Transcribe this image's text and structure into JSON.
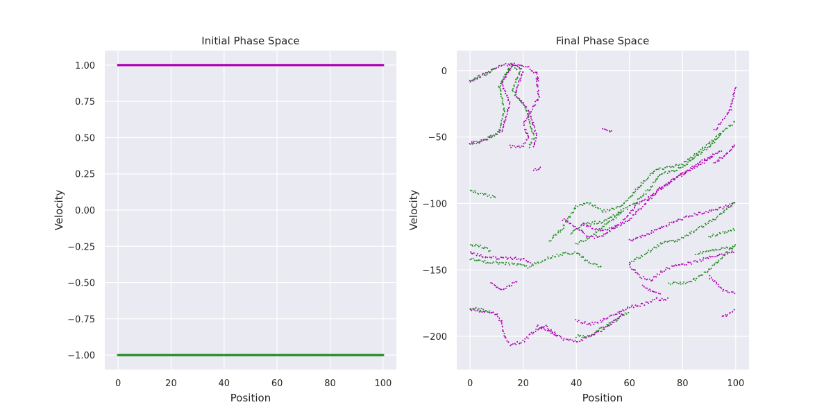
{
  "figure": {
    "background": "#ffffff",
    "plot_background": "#eaeaf2",
    "grid_color": "#ffffff",
    "series_colors": {
      "upper": "#b000b5",
      "lower": "#228b22"
    }
  },
  "chart_data": [
    {
      "type": "scatter",
      "title": "Initial Phase Space",
      "xlabel": "Position",
      "ylabel": "Velocity",
      "xlim": [
        -5,
        105
      ],
      "ylim": [
        -1.1,
        1.1
      ],
      "xticks": [
        0,
        20,
        40,
        60,
        80,
        100
      ],
      "xtick_labels": [
        "0",
        "20",
        "40",
        "60",
        "80",
        "100"
      ],
      "yticks": [
        1.0,
        0.75,
        0.5,
        0.25,
        0.0,
        -0.25,
        -0.5,
        -0.75,
        -1.0
      ],
      "ytick_labels": [
        "1.00",
        "0.75",
        "0.50",
        "0.25",
        "0.00",
        "−0.25",
        "−0.50",
        "−0.75",
        "−1.00"
      ],
      "grid": true,
      "series": [
        {
          "color": "#b000b5",
          "x_range": [
            0,
            100
          ],
          "y": 1.0,
          "count": 400
        },
        {
          "color": "#228b22",
          "x_range": [
            0,
            100
          ],
          "y": -1.0,
          "count": 400
        }
      ]
    },
    {
      "type": "scatter",
      "title": "Final Phase Space",
      "xlabel": "Position",
      "ylabel": "Velocity",
      "xlim": [
        -5,
        105
      ],
      "ylim": [
        -225,
        15
      ],
      "xticks": [
        0,
        20,
        40,
        60,
        80,
        100
      ],
      "xtick_labels": [
        "0",
        "20",
        "40",
        "60",
        "80",
        "100"
      ],
      "yticks": [
        0,
        -50,
        -100,
        -150,
        -200
      ],
      "ytick_labels": [
        "0",
        "−50",
        "−100",
        "−150",
        "−200"
      ],
      "grid": true,
      "series": [
        {
          "color": "#b000b5",
          "curves": [
            [
              [
                0,
                -55
              ],
              [
                6,
                -52
              ],
              [
                12,
                -45
              ],
              [
                15,
                -25
              ],
              [
                12,
                -10
              ],
              [
                16,
                5
              ],
              [
                20,
                0
              ],
              [
                17,
                -18
              ],
              [
                22,
                -30
              ],
              [
                25,
                -48
              ],
              [
                24,
                -58
              ]
            ],
            [
              [
                15,
                -57
              ],
              [
                20,
                -57
              ],
              [
                22,
                -50
              ],
              [
                20,
                -40
              ],
              [
                23,
                -30
              ],
              [
                26,
                -20
              ],
              [
                25,
                -5
              ]
            ],
            [
              [
                0,
                -8
              ],
              [
                4,
                -4
              ],
              [
                8,
                0
              ],
              [
                12,
                4
              ],
              [
                18,
                5
              ],
              [
                22,
                2
              ],
              [
                25,
                -2
              ],
              [
                26,
                -8
              ]
            ],
            [
              [
                24,
                -75
              ],
              [
                27,
                -72
              ]
            ],
            [
              [
                35,
                -112
              ],
              [
                40,
                -118
              ],
              [
                45,
                -126
              ],
              [
                50,
                -124
              ],
              [
                56,
                -116
              ],
              [
                60,
                -108
              ],
              [
                63,
                -100
              ],
              [
                67,
                -96
              ],
              [
                73,
                -86
              ],
              [
                80,
                -78
              ],
              [
                88,
                -69
              ],
              [
                92,
                -64
              ]
            ],
            [
              [
                42,
                -115
              ],
              [
                48,
                -120
              ],
              [
                55,
                -118
              ],
              [
                60,
                -112
              ],
              [
                65,
                -102
              ],
              [
                70,
                -92
              ],
              [
                78,
                -80
              ],
              [
                85,
                -71
              ],
              [
                95,
                -60
              ]
            ],
            [
              [
                60,
                -128
              ],
              [
                66,
                -124
              ],
              [
                72,
                -118
              ],
              [
                78,
                -113
              ],
              [
                85,
                -108
              ],
              [
                90,
                -106
              ],
              [
                95,
                -103
              ],
              [
                100,
                -99
              ]
            ],
            [
              [
                0,
                -137
              ],
              [
                5,
                -140
              ],
              [
                10,
                -141
              ],
              [
                15,
                -141
              ],
              [
                20,
                -142
              ],
              [
                23,
                -144
              ]
            ],
            [
              [
                60,
                -147
              ],
              [
                64,
                -155
              ],
              [
                68,
                -158
              ],
              [
                73,
                -150
              ],
              [
                78,
                -146
              ],
              [
                83,
                -145
              ],
              [
                88,
                -142
              ],
              [
                93,
                -139
              ],
              [
                100,
                -136
              ]
            ],
            [
              [
                25,
                -192
              ],
              [
                30,
                -196
              ],
              [
                35,
                -202
              ],
              [
                40,
                -204
              ],
              [
                45,
                -200
              ],
              [
                50,
                -195
              ],
              [
                55,
                -188
              ],
              [
                58,
                -182
              ]
            ],
            [
              [
                0,
                -180
              ],
              [
                5,
                -181
              ],
              [
                10,
                -183
              ],
              [
                12,
                -190
              ],
              [
                13,
                -200
              ],
              [
                15,
                -206
              ],
              [
                20,
                -204
              ],
              [
                23,
                -198
              ],
              [
                28,
                -192
              ],
              [
                33,
                -200
              ]
            ],
            [
              [
                40,
                -188
              ],
              [
                45,
                -191
              ],
              [
                50,
                -188
              ],
              [
                55,
                -183
              ],
              [
                60,
                -178
              ],
              [
                65,
                -176
              ],
              [
                70,
                -172
              ],
              [
                75,
                -172
              ]
            ],
            [
              [
                8,
                -160
              ],
              [
                12,
                -165
              ],
              [
                15,
                -162
              ],
              [
                18,
                -158
              ]
            ],
            [
              [
                90,
                -155
              ],
              [
                95,
                -165
              ],
              [
                100,
                -168
              ]
            ],
            [
              [
                95,
                -185
              ],
              [
                98,
                -183
              ],
              [
                100,
                -180
              ]
            ],
            [
              [
                92,
                -70
              ],
              [
                95,
                -65
              ],
              [
                98,
                -60
              ],
              [
                100,
                -55
              ]
            ],
            [
              [
                92,
                -45
              ],
              [
                95,
                -38
              ],
              [
                98,
                -30
              ],
              [
                100,
                -12
              ]
            ],
            [
              [
                65,
                -162
              ],
              [
                68,
                -166
              ],
              [
                72,
                -168
              ]
            ],
            [
              [
                50,
                -43
              ],
              [
                54,
                -46
              ]
            ]
          ]
        },
        {
          "color": "#228b22",
          "curves": [
            [
              [
                0,
                -55
              ],
              [
                5,
                -53
              ],
              [
                11,
                -46
              ],
              [
                13,
                -30
              ],
              [
                11,
                -12
              ],
              [
                15,
                3
              ],
              [
                19,
                1
              ],
              [
                16,
                -15
              ],
              [
                21,
                -28
              ],
              [
                24,
                -50
              ],
              [
                22,
                -58
              ]
            ],
            [
              [
                0,
                -8
              ],
              [
                3,
                -5
              ],
              [
                7,
                -2
              ],
              [
                10,
                2
              ]
            ],
            [
              [
                30,
                -128
              ],
              [
                35,
                -118
              ],
              [
                40,
                -102
              ],
              [
                45,
                -100
              ],
              [
                50,
                -106
              ],
              [
                55,
                -104
              ],
              [
                60,
                -96
              ],
              [
                65,
                -84
              ],
              [
                70,
                -74
              ],
              [
                75,
                -73
              ],
              [
                80,
                -70
              ],
              [
                85,
                -63
              ],
              [
                90,
                -55
              ],
              [
                95,
                -46
              ],
              [
                100,
                -38
              ]
            ],
            [
              [
                38,
                -123
              ],
              [
                43,
                -115
              ],
              [
                50,
                -114
              ],
              [
                56,
                -107
              ],
              [
                62,
                -100
              ],
              [
                68,
                -88
              ],
              [
                72,
                -78
              ],
              [
                80,
                -73
              ],
              [
                88,
                -60
              ],
              [
                95,
                -48
              ]
            ],
            [
              [
                40,
                -130
              ],
              [
                45,
                -126
              ],
              [
                50,
                -118
              ],
              [
                55,
                -110
              ],
              [
                58,
                -104
              ]
            ],
            [
              [
                0,
                -131
              ],
              [
                4,
                -132
              ],
              [
                8,
                -136
              ]
            ],
            [
              [
                0,
                -142
              ],
              [
                6,
                -144
              ],
              [
                12,
                -145
              ],
              [
                18,
                -146
              ],
              [
                22,
                -148
              ],
              [
                28,
                -142
              ],
              [
                35,
                -138
              ],
              [
                40,
                -137
              ],
              [
                45,
                -145
              ],
              [
                50,
                -148
              ]
            ],
            [
              [
                60,
                -145
              ],
              [
                66,
                -138
              ],
              [
                72,
                -130
              ],
              [
                78,
                -128
              ],
              [
                85,
                -120
              ],
              [
                92,
                -112
              ],
              [
                100,
                -99
              ]
            ],
            [
              [
                75,
                -160
              ],
              [
                80,
                -160
              ],
              [
                85,
                -157
              ],
              [
                90,
                -150
              ],
              [
                95,
                -140
              ],
              [
                100,
                -131
              ]
            ],
            [
              [
                40,
                -200
              ],
              [
                45,
                -200
              ],
              [
                50,
                -193
              ],
              [
                55,
                -188
              ],
              [
                60,
                -181
              ]
            ],
            [
              [
                0,
                -179
              ],
              [
                5,
                -180
              ],
              [
                8,
                -182
              ]
            ],
            [
              [
                0,
                -90
              ],
              [
                5,
                -93
              ],
              [
                10,
                -96
              ]
            ],
            [
              [
                90,
                -125
              ],
              [
                95,
                -122
              ],
              [
                100,
                -119
              ]
            ],
            [
              [
                85,
                -138
              ],
              [
                92,
                -135
              ],
              [
                100,
                -133
              ]
            ]
          ]
        }
      ]
    }
  ]
}
